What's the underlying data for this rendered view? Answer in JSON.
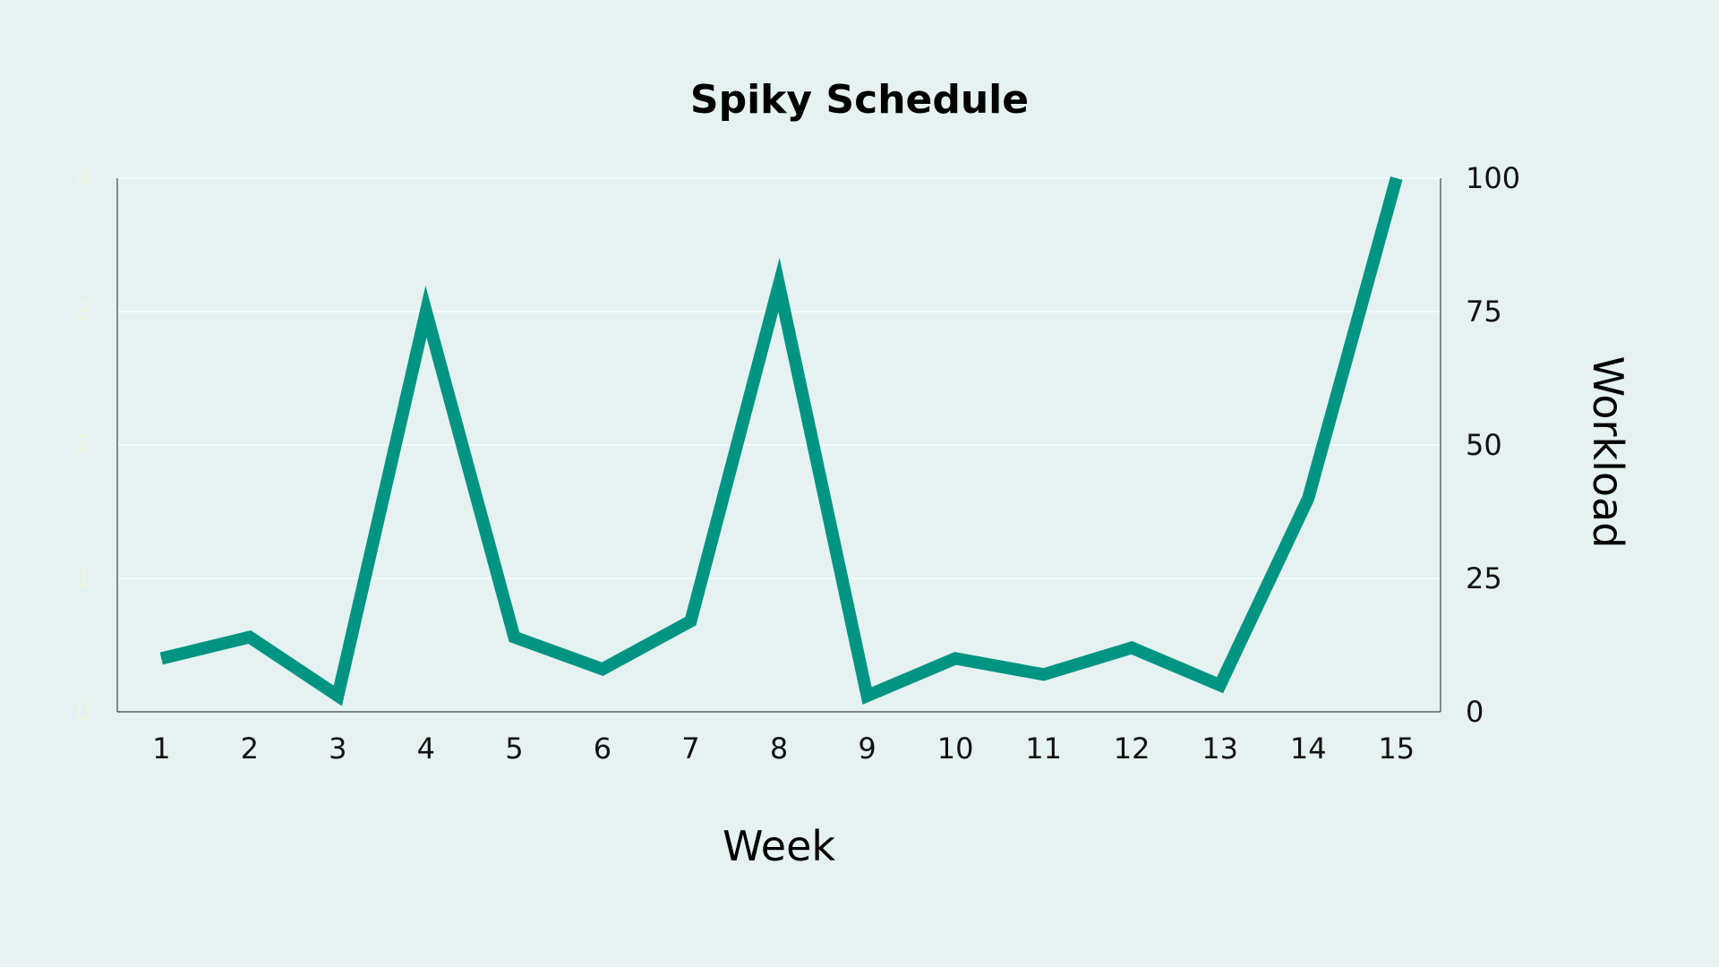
{
  "chart_data": {
    "type": "line",
    "title": "Spiky Schedule",
    "xlabel": "Week",
    "ylabel": "Workload",
    "categories": [
      "1",
      "2",
      "3",
      "4",
      "5",
      "6",
      "7",
      "8",
      "9",
      "10",
      "11",
      "12",
      "13",
      "14",
      "15"
    ],
    "series": [
      {
        "values": [
          10,
          14,
          3,
          75,
          14,
          8,
          17,
          80,
          3,
          10,
          7,
          12,
          5,
          40,
          100
        ]
      }
    ],
    "ylim": [
      0,
      100
    ],
    "y_ticks": [
      "0",
      "25",
      "50",
      "75",
      "100"
    ],
    "y_axis_side": "right",
    "left_axis_ticks": [
      "0",
      "1",
      "2",
      "3",
      "4"
    ],
    "grid": true,
    "line_color": "#009483",
    "background": "#e5f2f1"
  }
}
